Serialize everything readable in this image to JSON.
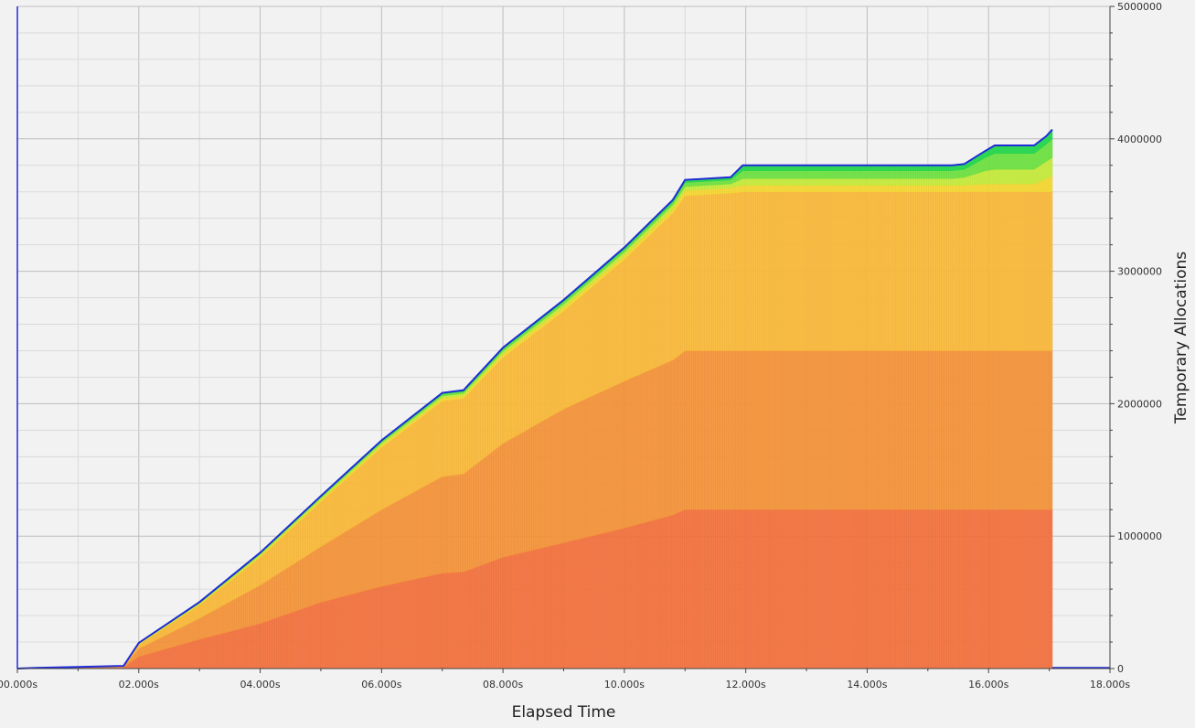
{
  "chart_data": {
    "type": "area",
    "stacked": true,
    "xlabel": "Elapsed Time",
    "ylabel": "Temporary Allocations",
    "xlim": [
      0,
      18
    ],
    "ylim": [
      0,
      5000000
    ],
    "x_ticks": [
      0,
      2,
      4,
      6,
      8,
      10,
      12,
      14,
      16,
      18
    ],
    "x_tick_labels": [
      "00.000s",
      "02.000s",
      "04.000s",
      "06.000s",
      "08.000s",
      "10.000s",
      "12.000s",
      "14.000s",
      "16.000s",
      "18.000s"
    ],
    "y_ticks": [
      0,
      1000000,
      2000000,
      3000000,
      4000000,
      5000000
    ],
    "y_tick_labels": [
      "0",
      "1000000",
      "2000000",
      "3000000",
      "4000000",
      "5000000"
    ],
    "y_axis_position": "right",
    "grid": true,
    "x": [
      0,
      0.3,
      1.0,
      1.75,
      2.0,
      3.0,
      4.0,
      5.0,
      6.0,
      7.0,
      7.35,
      8.0,
      9.0,
      10.0,
      10.8,
      11.0,
      11.75,
      11.95,
      15.4,
      15.6,
      15.95,
      16.1,
      16.75,
      16.95,
      17.05
    ],
    "series": [
      {
        "color": "#f4733f",
        "values": [
          0,
          2000,
          5000,
          8000,
          90000,
          220000,
          340000,
          500000,
          620000,
          720000,
          730000,
          840000,
          950000,
          1060000,
          1160000,
          1200000,
          1200000,
          1200000,
          1200000,
          1200000,
          1200000,
          1200000,
          1200000,
          1200000,
          1200000
        ]
      },
      {
        "color": "#f6953b",
        "values": [
          0,
          2000,
          5000,
          8000,
          60000,
          160000,
          290000,
          420000,
          580000,
          730000,
          740000,
          860000,
          1010000,
          1110000,
          1170000,
          1200000,
          1200000,
          1200000,
          1200000,
          1200000,
          1200000,
          1200000,
          1200000,
          1200000,
          1200000
        ]
      },
      {
        "color": "#fbba3b",
        "values": [
          0,
          1000,
          2000,
          4000,
          30000,
          100000,
          210000,
          340000,
          470000,
          570000,
          570000,
          650000,
          740000,
          920000,
          1110000,
          1170000,
          1190000,
          1200000,
          1200000,
          1200000,
          1200000,
          1200000,
          1200000,
          1200000,
          1200000
        ]
      },
      {
        "color": "#f6d834",
        "values": [
          0,
          0,
          0,
          0,
          5000,
          8000,
          12000,
          15000,
          18000,
          20000,
          20000,
          25000,
          28000,
          30000,
          32000,
          40000,
          40000,
          50000,
          50000,
          50000,
          60000,
          60000,
          60000,
          100000,
          120000
        ]
      },
      {
        "color": "#c6ec3c",
        "values": [
          0,
          0,
          0,
          0,
          4000,
          6000,
          10000,
          12000,
          15000,
          18000,
          18000,
          20000,
          24000,
          25000,
          30000,
          30000,
          30000,
          50000,
          50000,
          60000,
          100000,
          110000,
          110000,
          130000,
          140000
        ]
      },
      {
        "color": "#6fe342",
        "values": [
          0,
          0,
          0,
          0,
          3000,
          5000,
          8000,
          10000,
          12000,
          14000,
          14000,
          16000,
          18000,
          20000,
          20000,
          30000,
          30000,
          60000,
          60000,
          60000,
          100000,
          120000,
          120000,
          130000,
          140000
        ]
      },
      {
        "color": "#24d84e",
        "values": [
          0,
          0,
          0,
          0,
          2000,
          3000,
          5000,
          6000,
          8000,
          10000,
          10000,
          12000,
          14000,
          15000,
          18000,
          20000,
          20000,
          40000,
          40000,
          40000,
          50000,
          60000,
          60000,
          60000,
          70000
        ]
      }
    ],
    "outline_color": "#1f2cd6"
  }
}
